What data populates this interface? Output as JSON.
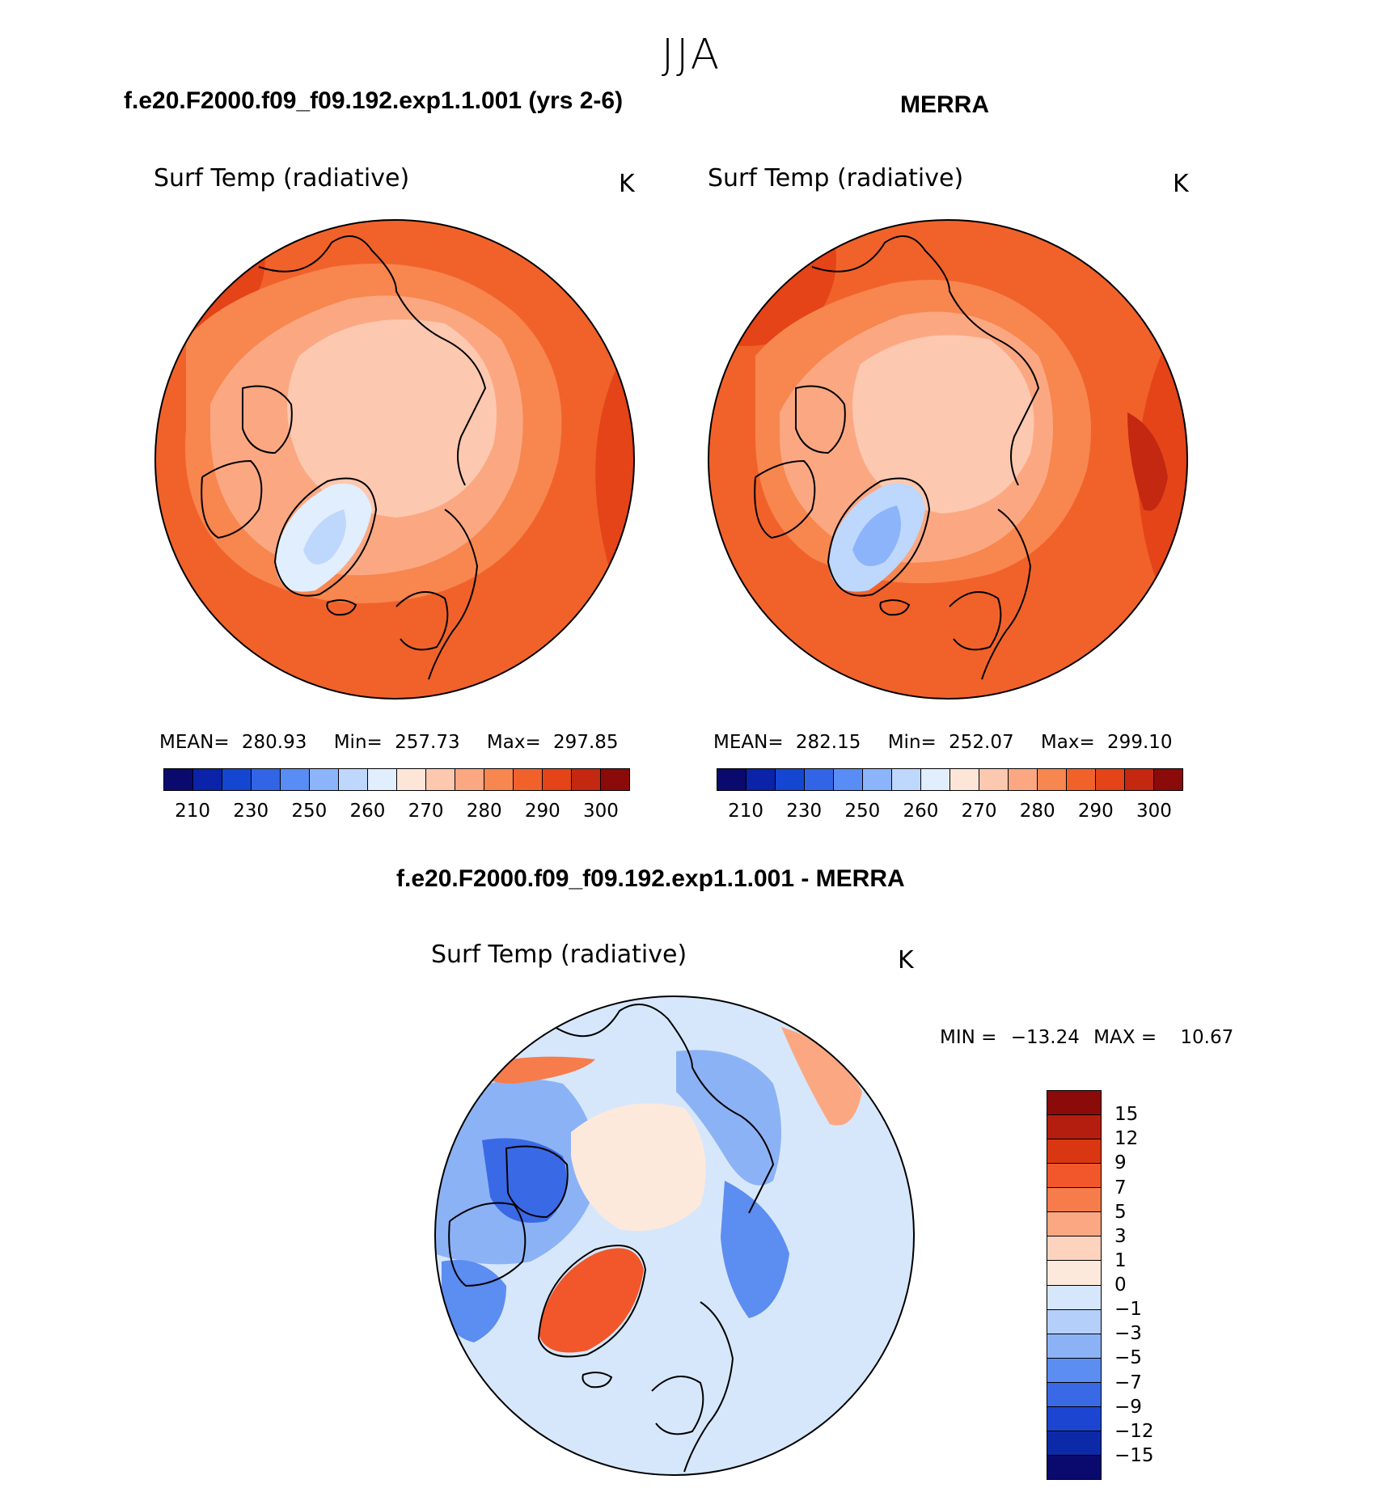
{
  "season": "JJA",
  "units": "K",
  "panels": {
    "model": {
      "case_title": "f.e20.F2000.f09_f09.192.exp1.1.001 (yrs 2-6)",
      "var_label": "Surf Temp (radiative)",
      "units": "K",
      "stats": {
        "mean_label": "MEAN=",
        "mean": "280.93",
        "min_label": "Min=",
        "min": "257.73",
        "max_label": "Max=",
        "max": "297.85"
      },
      "colorbar_ticks": [
        "210",
        "230",
        "250",
        "260",
        "270",
        "280",
        "290",
        "300"
      ]
    },
    "obs": {
      "case_title": "MERRA",
      "var_label": "Surf Temp (radiative)",
      "units": "K",
      "stats": {
        "mean_label": "MEAN=",
        "mean": "282.15",
        "min_label": "Min=",
        "min": "252.07",
        "max_label": "Max=",
        "max": "299.10"
      },
      "colorbar_ticks": [
        "210",
        "230",
        "250",
        "260",
        "270",
        "280",
        "290",
        "300"
      ]
    },
    "diff": {
      "case_title": "f.e20.F2000.f09_f09.192.exp1.1.001 - MERRA",
      "var_label": "Surf Temp (radiative)",
      "units": "K",
      "stats": {
        "min_label": "MIN =",
        "min": "−13.24",
        "max_label": "MAX =",
        "max": "10.67"
      },
      "colorbar_ticks": [
        "15",
        "12",
        "9",
        "7",
        "5",
        "3",
        "1",
        "0",
        "−1",
        "−3",
        "−5",
        "−7",
        "−9",
        "−12",
        "−15"
      ]
    }
  },
  "colors": {
    "abs_scale": [
      "#0a0a6e",
      "#0a23a8",
      "#1446d2",
      "#3264e6",
      "#5a8cf5",
      "#8cb4fa",
      "#bed7fc",
      "#e1eefd",
      "#fde6d8",
      "#fcc8b0",
      "#fba882",
      "#f8864f",
      "#f1622b",
      "#e44418",
      "#c42810",
      "#8b0a0a"
    ],
    "diff_scale": [
      "#8b0a0a",
      "#b41e0f",
      "#d93712",
      "#f1572a",
      "#f77c4b",
      "#fba882",
      "#fdd3bd",
      "#fde9dc",
      "#d6e7fb",
      "#b4cff9",
      "#8cb2f6",
      "#5c8df0",
      "#3a69e6",
      "#1c46d2",
      "#0c2aa8",
      "#0a0a6e"
    ]
  }
}
